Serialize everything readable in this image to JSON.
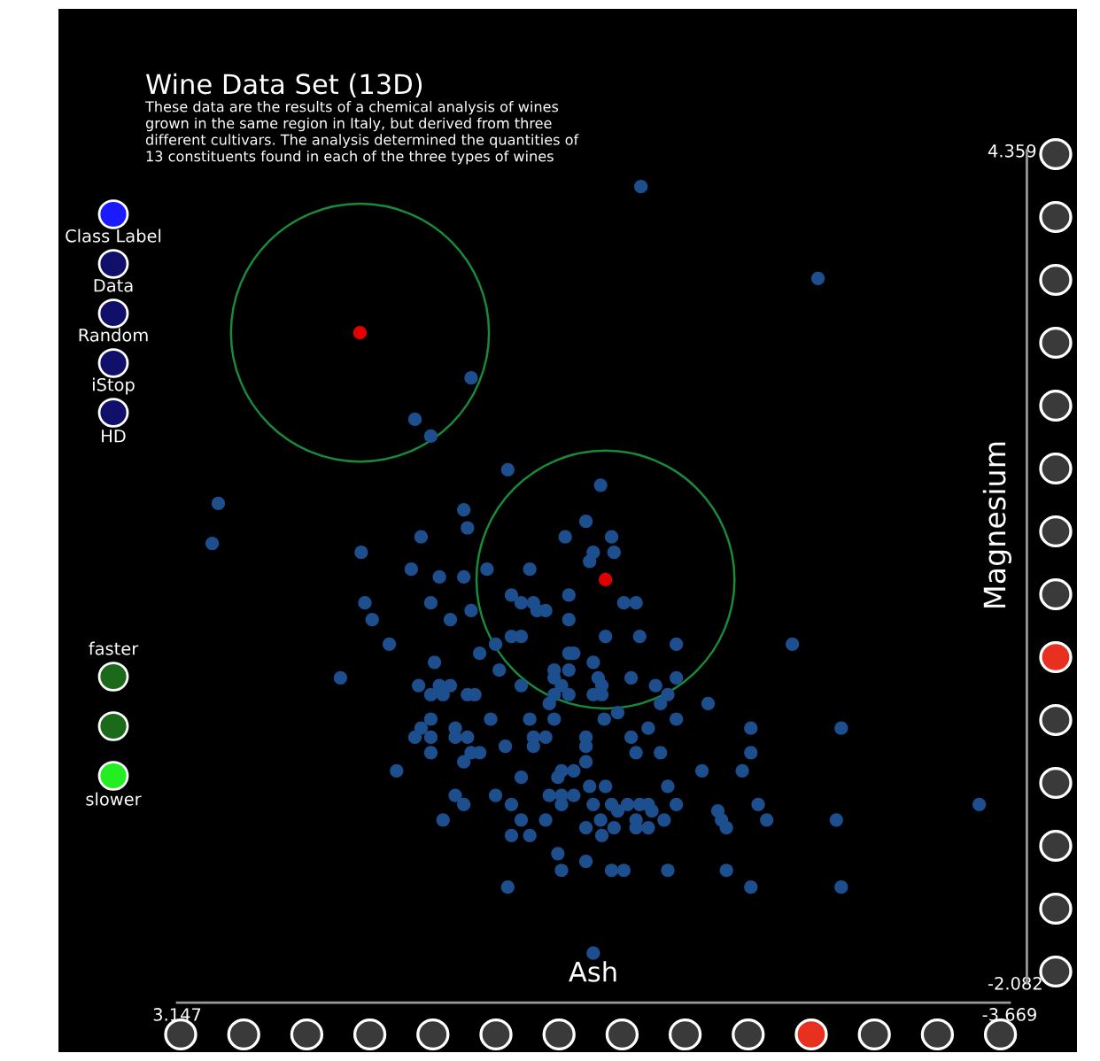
{
  "chart_data": {
    "type": "scatter",
    "title": "Wine Data Set (13D)",
    "subtitle": "These data are the results of a chemical analysis of wines\ngrown in the same region in Italy, but derived from three\ndifferent cultivars. The analysis determined the quantities of\n13 constituents found in each of the three types of wines",
    "xlabel": "Ash",
    "ylabel": "Magnesium",
    "annotations": [
      "Class Label",
      "Data",
      "Random",
      "iStop",
      "HD",
      "faster",
      "slower"
    ],
    "xlim": [
      3.147,
      -3.669
    ],
    "ylim": [
      -2.082,
      4.359
    ],
    "xticks": [
      3.147,
      -3.669
    ],
    "yticks": [
      -2.082,
      4.359
    ],
    "grid": false,
    "marker": "circle",
    "series": [
      {
        "color": "#1d4f8f",
        "x": [
          0.74,
          1.2,
          1.07,
          0.44,
          2.81,
          2.86,
          -0.32,
          -0.65,
          -2.1,
          0.8,
          0.77,
          1.15,
          -0.2,
          -0.03,
          -0.41,
          -0.26,
          -0.43,
          -0.23,
          1.64,
          1.23,
          0.61,
          0.26,
          1.0,
          0.8,
          0.41,
          -0.06,
          1.61,
          1.07,
          0.33,
          0.23,
          -0.51,
          -0.61,
          0.2,
          0.13,
          0.74,
          1.55,
          0.91,
          -0.06,
          0.41,
          0.33,
          -0.36,
          -0.64,
          1.41,
          0.54,
          0.67,
          -0.06,
          -0.1,
          1.04,
          -0.26,
          0.51,
          0.06,
          -0.06,
          1.81,
          0.06,
          -0.3,
          -0.57,
          1.17,
          1.0,
          0.91,
          0.33,
          0.0,
          -0.33,
          -0.77,
          1.07,
          0.97,
          0.77,
          0.71,
          0.06,
          -0.06,
          -0.26,
          -0.33,
          -0.87,
          0.1,
          -0.81,
          -0.46,
          1.07,
          0.58,
          0.26,
          0.06,
          -0.35,
          1.15,
          0.87,
          1.2,
          1.07,
          0.87,
          0.77,
          0.23,
          0.13,
          -0.2,
          -0.57,
          -0.71,
          0.46,
          0.23,
          -0.2,
          1.07,
          0.74,
          0.67,
          0.8,
          -0.2,
          -0.61,
          -0.81,
          1.35,
          0.0,
          -0.1,
          0.03,
          0.33,
          -0.23,
          -0.36,
          -0.87,
          0.87,
          0.1,
          0.0,
          -0.1,
          0.8,
          0.54,
          0.41,
          0.0,
          -0.26,
          -0.41,
          -0.54,
          -0.64,
          -0.71,
          -0.46,
          -0.74,
          0.97,
          0.33,
          0.13,
          -0.32,
          -0.61,
          -0.84,
          -0.2,
          -0.43,
          -0.61,
          -0.71,
          0.41,
          0.26,
          -0.33,
          0.03,
          0.0,
          -0.2,
          -0.41,
          -0.51,
          -0.87,
          0.44,
          -0.26,
          -0.94,
          -1.55,
          -2.29,
          -1.55,
          -1.15,
          -1.48,
          -0.94,
          -1.28,
          -1.61,
          -1.31,
          -1.35,
          -1.68,
          -2.25,
          -3.42,
          -1.35,
          -1.55,
          -2.29,
          -1.89,
          -0.94,
          -0.94,
          -1.2
        ],
        "values": [
          2.6,
          2.28,
          2.15,
          1.89,
          1.63,
          1.32,
          1.77,
          4.08,
          3.37,
          1.58,
          1.44,
          1.37,
          1.49,
          1.37,
          1.37,
          1.25,
          1.25,
          1.18,
          1.25,
          1.12,
          1.12,
          1.12,
          1.06,
          1.06,
          0.92,
          0.92,
          0.86,
          0.86,
          0.86,
          0.86,
          0.86,
          0.86,
          0.8,
          0.8,
          0.8,
          0.73,
          0.73,
          0.73,
          0.6,
          0.6,
          0.6,
          0.6,
          0.54,
          0.54,
          0.47,
          0.47,
          0.47,
          0.4,
          0.4,
          0.34,
          0.34,
          0.34,
          0.28,
          0.28,
          0.28,
          0.28,
          0.22,
          0.22,
          0.22,
          0.22,
          0.22,
          0.22,
          0.22,
          0.15,
          0.15,
          0.15,
          0.15,
          0.15,
          0.15,
          0.15,
          0.15,
          0.15,
          0.08,
          0.08,
          0.01,
          -0.04,
          -0.04,
          -0.04,
          -0.04,
          -0.04,
          -0.11,
          -0.11,
          -0.18,
          -0.18,
          -0.18,
          -0.18,
          -0.18,
          -0.18,
          -0.18,
          -0.18,
          -0.11,
          -0.25,
          -0.25,
          -0.25,
          -0.3,
          -0.3,
          -0.3,
          -0.37,
          -0.37,
          -0.3,
          -0.3,
          -0.44,
          -0.44,
          -0.44,
          -0.49,
          -0.49,
          -0.56,
          -0.56,
          -0.56,
          -0.63,
          -0.63,
          -0.63,
          -0.63,
          -0.7,
          -0.63,
          -0.7,
          -0.7,
          -0.7,
          -0.7,
          -0.7,
          -0.7,
          -0.7,
          -0.75,
          -0.75,
          -0.82,
          -0.82,
          -0.82,
          -0.82,
          -0.82,
          -0.82,
          -0.88,
          -0.88,
          -0.88,
          -0.88,
          -0.94,
          -0.94,
          -0.94,
          -1.08,
          -1.21,
          -1.14,
          -1.21,
          -1.21,
          -1.21,
          -1.34,
          -1.85,
          -0.04,
          -0.11,
          -0.11,
          -0.3,
          -0.44,
          -0.44,
          -0.7,
          -0.75,
          -0.7,
          -0.82,
          -0.88,
          -0.82,
          -0.82,
          -0.7,
          -1.21,
          -1.34,
          -1.34,
          0.54,
          0.54,
          0.28,
          0.08
        ]
      },
      {
        "color": "#e00000",
        "x": [
          1.65,
          -0.36
        ],
        "values": [
          2.95,
          1.04
        ]
      }
    ]
  }
}
